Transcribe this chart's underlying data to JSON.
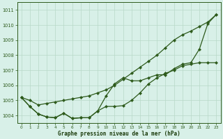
{
  "x": [
    0,
    1,
    2,
    3,
    4,
    5,
    6,
    7,
    8,
    9,
    10,
    11,
    12,
    13,
    14,
    15,
    16,
    17,
    18,
    19,
    20,
    21,
    22,
    23
  ],
  "line1": [
    1005.2,
    1004.6,
    1004.1,
    1003.9,
    1003.85,
    1004.15,
    1003.8,
    1003.85,
    1003.85,
    1004.3,
    1005.3,
    1006.1,
    1006.5,
    1006.3,
    1006.3,
    1006.5,
    1006.7,
    1006.7,
    1007.1,
    1007.4,
    1007.5,
    1008.4,
    1010.1,
    1010.7
  ],
  "line2": [
    1005.2,
    1004.6,
    1004.1,
    1003.9,
    1003.85,
    1004.15,
    1003.8,
    1003.85,
    1003.85,
    1004.3,
    1004.6,
    1004.6,
    1004.65,
    1005.0,
    1005.5,
    1006.1,
    1006.5,
    1006.8,
    1007.0,
    1007.3,
    1007.4,
    1007.5,
    1007.5,
    1007.5
  ],
  "line3": [
    1005.2,
    1005.0,
    1004.7,
    1004.8,
    1004.9,
    1005.0,
    1005.1,
    1005.2,
    1005.3,
    1005.5,
    1005.7,
    1006.0,
    1006.4,
    1006.8,
    1007.2,
    1007.6,
    1008.0,
    1008.5,
    1009.0,
    1009.35,
    1009.6,
    1009.9,
    1010.2,
    1010.7
  ],
  "ylim": [
    1003.5,
    1011.5
  ],
  "yticks": [
    1004,
    1005,
    1006,
    1007,
    1008,
    1009,
    1010,
    1011
  ],
  "xticks": [
    0,
    1,
    2,
    3,
    4,
    5,
    6,
    7,
    8,
    9,
    10,
    11,
    12,
    13,
    14,
    15,
    16,
    17,
    18,
    19,
    20,
    21,
    22,
    23
  ],
  "line_color": "#2d5a1b",
  "bg_color": "#d8f0e8",
  "grid_color": "#b8d8c8",
  "xlabel": "Graphe pression niveau de la mer (hPa)",
  "xlabel_color": "#1a3a0a",
  "axis_color": "#2d5a1b",
  "tick_label_color": "#2d5a1b",
  "marker": "D",
  "marker_size": 2.2,
  "linewidth": 0.9,
  "figsize": [
    3.2,
    2.0
  ],
  "dpi": 100
}
